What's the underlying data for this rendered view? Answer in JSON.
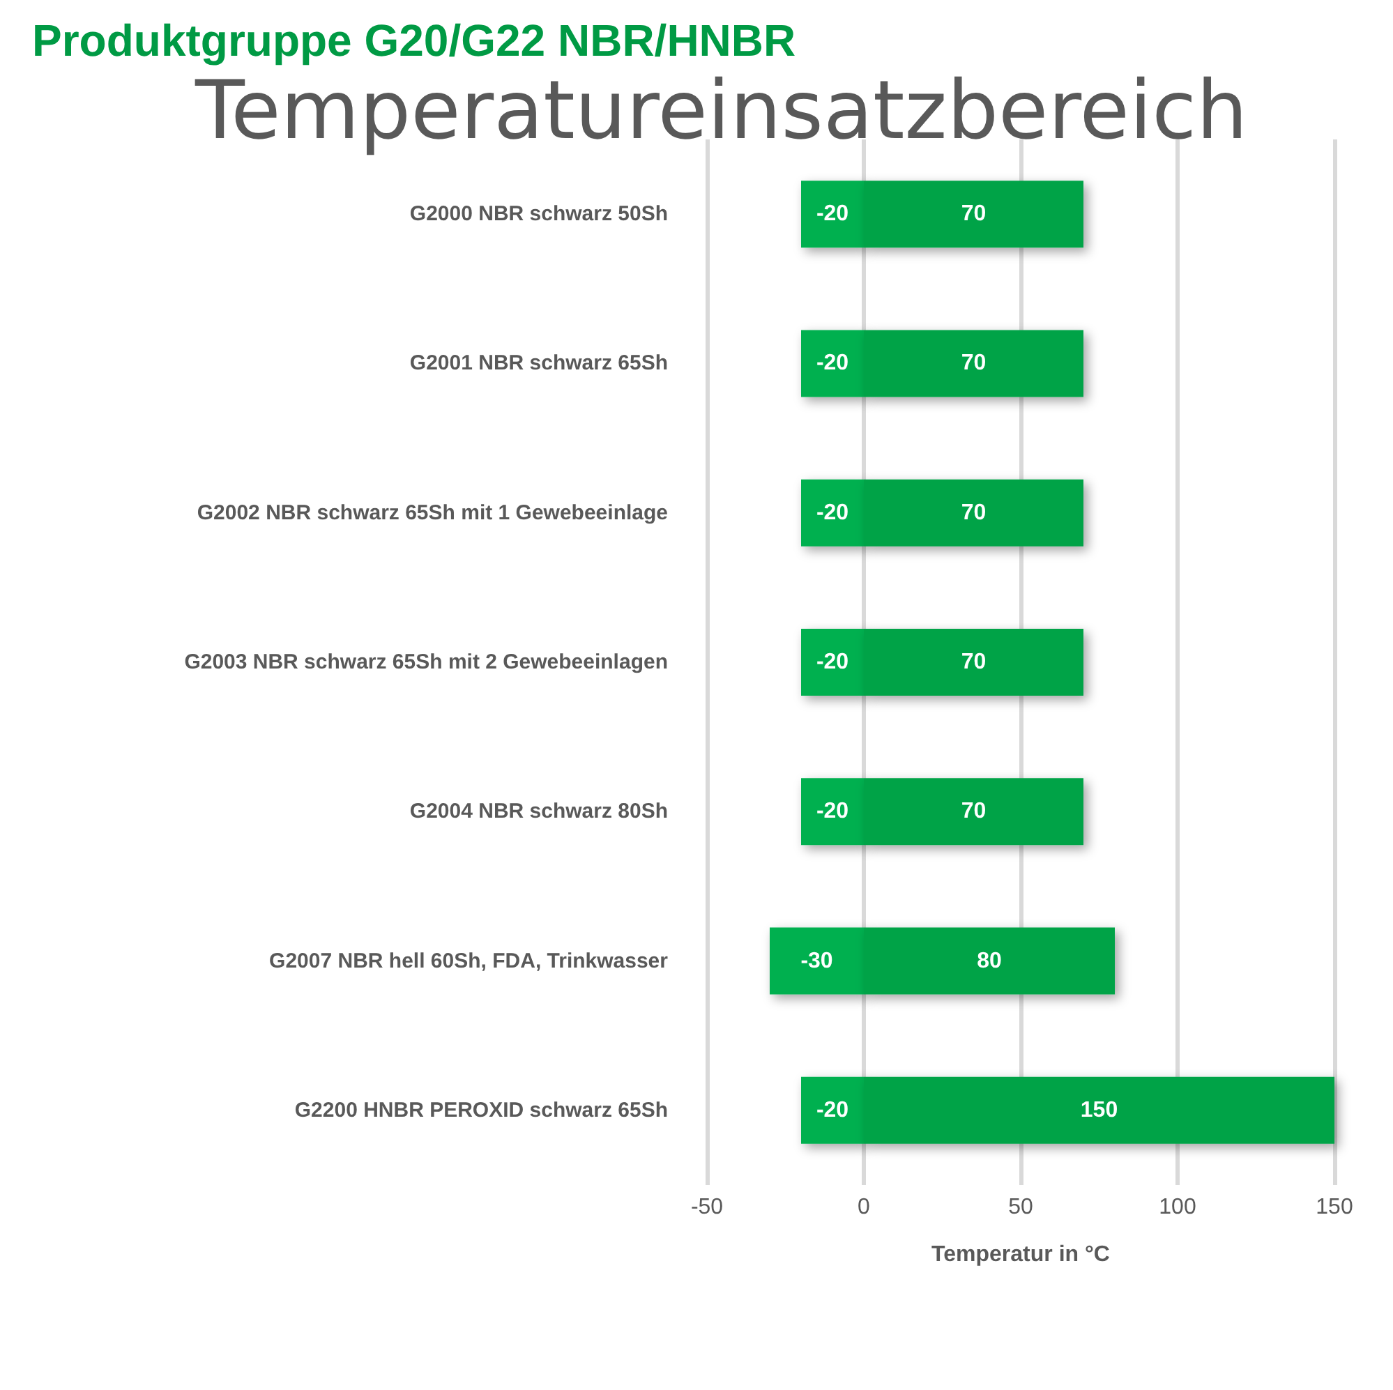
{
  "chart_data": {
    "type": "bar",
    "orientation": "horizontal",
    "stacked": true,
    "title": "Produktgruppe G20/G22 NBR/HNBR",
    "subtitle": "Temperatureinsatzbereich",
    "xlabel": "Temperatur in °C",
    "categories": [
      "G2000 NBR schwarz 50Sh",
      "G2001 NBR schwarz 65Sh",
      "G2002 NBR schwarz 65Sh mit 1 Gewebeeinlage",
      "G2003 NBR schwarz 65Sh mit 2 Gewebeeinlagen",
      "G2004 NBR schwarz 80Sh",
      "G2007 NBR hell 60Sh, FDA, Trinkwasser",
      "G2200 HNBR PEROXID schwarz 65Sh"
    ],
    "series": [
      {
        "color": "#00b050",
        "values": [
          -20,
          -20,
          -20,
          -20,
          -20,
          -30,
          -20
        ]
      },
      {
        "color": "#00a347",
        "values": [
          70,
          70,
          70,
          70,
          70,
          80,
          150
        ]
      }
    ],
    "xlim": [
      -50,
      150
    ],
    "xticks": [
      -50,
      0,
      50,
      100,
      150
    ],
    "grid": "x",
    "data_labels": true
  }
}
